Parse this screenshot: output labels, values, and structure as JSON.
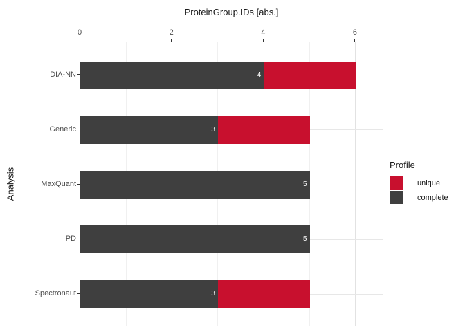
{
  "figure": {
    "title": "ProteinGroup.IDs [abs.]",
    "y_axis_title": "Analysis"
  },
  "legend": {
    "title": "Profile",
    "items": [
      {
        "name": "unique",
        "label": "unique",
        "color": "#C8102E"
      },
      {
        "name": "complete",
        "label": "complete",
        "color": "#3F3F3F"
      }
    ]
  },
  "chart_data": {
    "type": "bar",
    "orientation": "horizontal",
    "stacked": true,
    "title": "ProteinGroup.IDs [abs.]",
    "xlabel": "ProteinGroup.IDs [abs.]",
    "ylabel": "Analysis",
    "categories": [
      "DIA-NN",
      "Generic",
      "MaxQuant",
      "PD",
      "Spectronaut"
    ],
    "series": [
      {
        "name": "complete",
        "color": "#3F3F3F",
        "values": [
          4,
          3,
          5,
          5,
          3
        ]
      },
      {
        "name": "unique",
        "color": "#C8102E",
        "values": [
          2,
          2,
          0,
          0,
          2
        ]
      }
    ],
    "totals": [
      6,
      5,
      5,
      5,
      5
    ],
    "bar_labels": [
      "4",
      "3",
      "5",
      "5",
      "3"
    ],
    "bar_label_color": "#FFFFFF",
    "x_ticks": [
      0,
      2,
      4,
      6
    ],
    "x_minor_ticks": [
      1,
      3,
      5
    ],
    "xlim": [
      0,
      6.62
    ],
    "x_axis_position": "top",
    "grid": true,
    "legend_title": "Profile",
    "legend_position": "right",
    "panel_background": "#FFFFFF",
    "panel_border": true
  }
}
